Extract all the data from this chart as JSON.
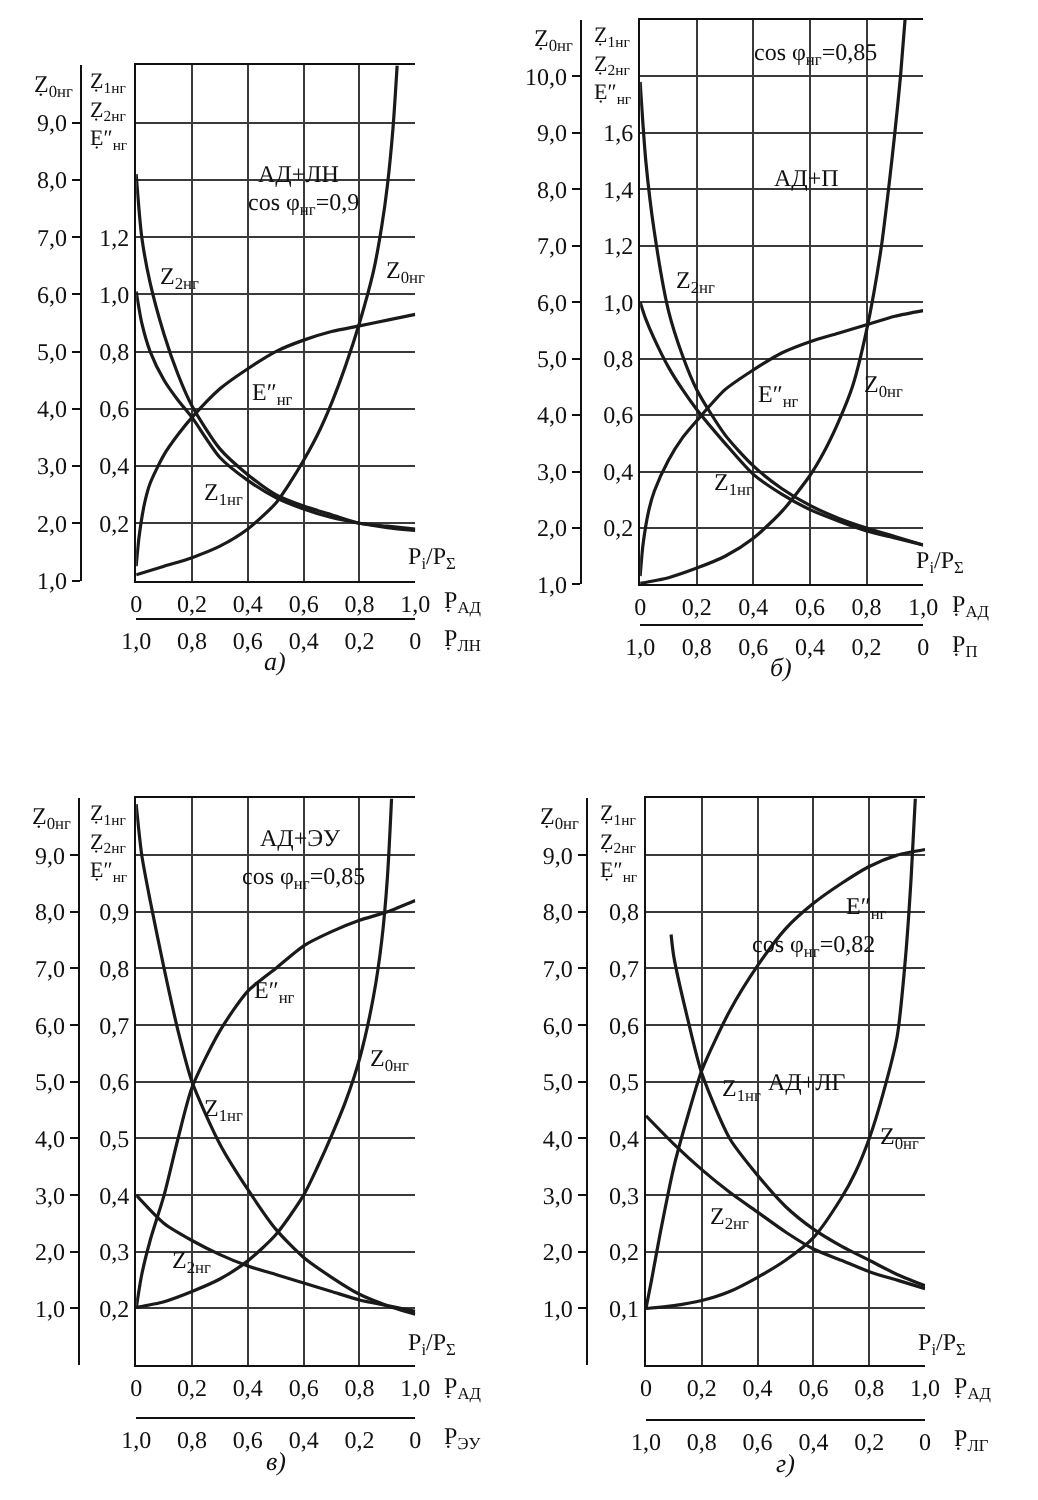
{
  "chart_data": [
    {
      "type": "line",
      "title": "а)",
      "xlabel": "P̣$_{АД}$",
      "x2label": "P̣$_{ЛН}$",
      "ylabel": "Ẓ$_{0нг}$",
      "y2label": "Ẓ$_{1нг}$\nẒ$_{2нг}$\nẸ″$_{нг}$",
      "annotations": [
        "АД+ЛН",
        "cos φ$_{нг}$=0,9",
        "P$_{i}$/P$_{Σ}$"
      ],
      "xlim": [
        0,
        1
      ],
      "xticks": [
        0,
        {
          "value": 0.2,
          "label": "0,2"
        },
        {
          "value": 0.4,
          "label": "0,4"
        },
        {
          "value": 0.6,
          "label": "0,6"
        },
        {
          "value": 0.8,
          "label": "0,8"
        },
        {
          "value": 1,
          "label": "1,0"
        }
      ],
      "x2lim": [
        1,
        0
      ],
      "x2ticks": [
        {
          "value": 1,
          "label": "1,0"
        },
        {
          "value": 0.8,
          "label": "0,8"
        },
        {
          "value": 0.6,
          "label": "0,6"
        },
        {
          "value": 0.4,
          "label": "0,4"
        },
        {
          "value": 0.2,
          "label": "0,2"
        },
        0
      ],
      "ylim": [
        1,
        10
      ],
      "yticks": [
        {
          "value": 1,
          "label": "1,0"
        },
        {
          "value": 2,
          "label": "2,0"
        },
        {
          "value": 3,
          "label": "3,0"
        },
        {
          "value": 4,
          "label": "4,0"
        },
        {
          "value": 5,
          "label": "5,0"
        },
        {
          "value": 6,
          "label": "6,0"
        },
        {
          "value": 7,
          "label": "7,0"
        },
        {
          "value": 8,
          "label": "8,0"
        },
        {
          "value": 9,
          "label": "9,0"
        }
      ],
      "y2lim": [
        0,
        1.8
      ],
      "y2ticks": [
        {
          "value": 0.2,
          "label": "0,2"
        },
        {
          "value": 0.4,
          "label": "0,4"
        },
        {
          "value": 0.6,
          "label": "0,6"
        },
        {
          "value": 0.8,
          "label": "0,8"
        },
        {
          "value": 1,
          "label": "1,0"
        },
        {
          "value": 1.2,
          "label": "1,2"
        }
      ],
      "grid": true,
      "legend": false,
      "marker": "none",
      "line_style": "solid",
      "series": [
        {
          "name": "Z$_{0нг}$",
          "color": "#1a1a1a",
          "axis": "y",
          "x": [
            0,
            0.1,
            0.2,
            0.3,
            0.4,
            0.5,
            0.55,
            0.6,
            0.65,
            0.7,
            0.75,
            0.8,
            0.85,
            0.88,
            0.9,
            0.92,
            0.935
          ],
          "values": [
            1.1,
            1.25,
            1.4,
            1.6,
            1.9,
            2.35,
            2.7,
            3.1,
            3.55,
            4.1,
            4.75,
            5.5,
            6.4,
            7.2,
            7.9,
            8.9,
            10
          ]
        },
        {
          "name": "Z$_{1нг}$",
          "color": "#1a1a1a",
          "axis": "y2",
          "x": [
            0,
            0.02,
            0.05,
            0.1,
            0.15,
            0.2,
            0.3,
            0.4,
            0.5,
            0.6,
            0.7,
            0.8,
            0.9,
            1
          ],
          "values": [
            1.01,
            0.9,
            0.8,
            0.7,
            0.63,
            0.57,
            0.43,
            0.35,
            0.29,
            0.25,
            0.22,
            0.2,
            0.185,
            0.175
          ]
        },
        {
          "name": "Z$_{2нг}$",
          "color": "#1a1a1a",
          "axis": "y2",
          "x": [
            0,
            0.02,
            0.05,
            0.1,
            0.15,
            0.2,
            0.3,
            0.4,
            0.5,
            0.6,
            0.7,
            0.8,
            0.9,
            1
          ],
          "values": [
            1.42,
            1.2,
            1.04,
            0.86,
            0.72,
            0.61,
            0.46,
            0.37,
            0.3,
            0.26,
            0.23,
            0.2,
            0.19,
            0.18
          ]
        },
        {
          "name": "E″$_{нг}$",
          "color": "#1a1a1a",
          "axis": "y2",
          "x": [
            0,
            0.01,
            0.03,
            0.05,
            0.1,
            0.15,
            0.2,
            0.3,
            0.4,
            0.5,
            0.6,
            0.7,
            0.8,
            0.9,
            1
          ],
          "values": [
            0.05,
            0.15,
            0.27,
            0.34,
            0.44,
            0.51,
            0.57,
            0.67,
            0.74,
            0.8,
            0.84,
            0.87,
            0.89,
            0.91,
            0.93
          ]
        }
      ]
    },
    {
      "type": "line",
      "title": "б)",
      "xlabel": "P̣$_{АД}$",
      "x2label": "P̣$_{П}$",
      "ylabel": "Ẓ$_{0нг}$",
      "y2label": "Ẓ$_{1нг}$\nẒ$_{2нг}$\nẸ″$_{нг}$",
      "annotations": [
        "cos φ$_{нг}$=0,85",
        "АД+П",
        "P$_{i}$/P$_{Σ}$"
      ],
      "xlim": [
        0,
        1
      ],
      "xticks": [
        0,
        {
          "value": 0.2,
          "label": "0,2"
        },
        {
          "value": 0.4,
          "label": "0,4"
        },
        {
          "value": 0.6,
          "label": "0,6"
        },
        {
          "value": 0.8,
          "label": "0,8"
        },
        {
          "value": 1,
          "label": "1,0"
        }
      ],
      "x2lim": [
        1,
        0
      ],
      "x2ticks": [
        {
          "value": 1,
          "label": "1,0"
        },
        {
          "value": 0.8,
          "label": "0,8"
        },
        {
          "value": 0.6,
          "label": "0,6"
        },
        {
          "value": 0.4,
          "label": "0,4"
        },
        {
          "value": 0.2,
          "label": "0,2"
        },
        0
      ],
      "ylim": [
        1,
        11
      ],
      "yticks": [
        {
          "value": 1,
          "label": "1,0"
        },
        {
          "value": 2,
          "label": "2,0"
        },
        {
          "value": 3,
          "label": "3,0"
        },
        {
          "value": 4,
          "label": "4,0"
        },
        {
          "value": 5,
          "label": "5,0"
        },
        {
          "value": 6,
          "label": "6,0"
        },
        {
          "value": 7,
          "label": "7,0"
        },
        {
          "value": 8,
          "label": "8,0"
        },
        {
          "value": 9,
          "label": "9,0"
        },
        {
          "value": 10,
          "label": "10,0"
        }
      ],
      "y2lim": [
        0,
        2
      ],
      "y2ticks": [
        {
          "value": 0.2,
          "label": "0,2"
        },
        {
          "value": 0.4,
          "label": "0,4"
        },
        {
          "value": 0.6,
          "label": "0,6"
        },
        {
          "value": 0.8,
          "label": "0,8"
        },
        {
          "value": 1,
          "label": "1,0"
        },
        {
          "value": 1.2,
          "label": "1,2"
        },
        {
          "value": 1.4,
          "label": "1,4"
        },
        {
          "value": 1.6,
          "label": "1,6"
        }
      ],
      "grid": true,
      "legend": false,
      "marker": "none",
      "line_style": "solid",
      "series": [
        {
          "name": "Z$_{0нг}$",
          "color": "#1a1a1a",
          "axis": "y",
          "x": [
            0,
            0.1,
            0.2,
            0.3,
            0.4,
            0.5,
            0.6,
            0.65,
            0.7,
            0.75,
            0.8,
            0.85,
            0.88,
            0.9,
            0.92,
            0.936
          ],
          "values": [
            1.02,
            1.12,
            1.29,
            1.5,
            1.82,
            2.29,
            2.93,
            3.35,
            3.87,
            4.5,
            5.5,
            6.9,
            8.1,
            9,
            10,
            11
          ]
        },
        {
          "name": "Z$_{1нг}$",
          "color": "#1a1a1a",
          "axis": "y2",
          "x": [
            0,
            0.02,
            0.05,
            0.1,
            0.15,
            0.2,
            0.3,
            0.4,
            0.5,
            0.6,
            0.7,
            0.8,
            0.9,
            1
          ],
          "values": [
            1,
            0.94,
            0.87,
            0.77,
            0.69,
            0.62,
            0.5,
            0.39,
            0.32,
            0.265,
            0.225,
            0.19,
            0.165,
            0.14
          ]
        },
        {
          "name": "Z$_{2нг}$",
          "color": "#1a1a1a",
          "axis": "y2",
          "x": [
            0,
            0.02,
            0.05,
            0.1,
            0.15,
            0.2,
            0.3,
            0.4,
            0.5,
            0.6,
            0.7,
            0.8,
            0.9,
            1
          ],
          "values": [
            1.78,
            1.5,
            1.25,
            0.97,
            0.81,
            0.69,
            0.53,
            0.42,
            0.34,
            0.28,
            0.235,
            0.2,
            0.17,
            0.14
          ]
        },
        {
          "name": "E″$_{нг}$",
          "color": "#1a1a1a",
          "axis": "y2",
          "x": [
            0,
            0.01,
            0.03,
            0.05,
            0.1,
            0.15,
            0.2,
            0.3,
            0.4,
            0.5,
            0.6,
            0.7,
            0.8,
            0.9,
            1
          ],
          "values": [
            0.03,
            0.14,
            0.26,
            0.33,
            0.44,
            0.52,
            0.58,
            0.69,
            0.76,
            0.82,
            0.86,
            0.89,
            0.92,
            0.95,
            0.97
          ]
        }
      ]
    },
    {
      "type": "line",
      "title": "в)",
      "xlabel": "P̣$_{АД}$",
      "x2label": "P̣$_{ЭУ}$",
      "ylabel": "Ẓ$_{0нг}$",
      "y2label": "Ẓ$_{1нг}$\nẒ$_{2нг}$\nẸ″$_{нг}$",
      "annotations": [
        "АД+ЭУ",
        "cos φ$_{нг}$=0,85",
        "P$_{i}$/P$_{Σ}$"
      ],
      "xlim": [
        0,
        1
      ],
      "xticks": [
        0,
        {
          "value": 0.2,
          "label": "0,2"
        },
        {
          "value": 0.4,
          "label": "0,4"
        },
        {
          "value": 0.6,
          "label": "0,6"
        },
        {
          "value": 0.8,
          "label": "0,8"
        },
        {
          "value": 1,
          "label": "1,0"
        }
      ],
      "x2lim": [
        1,
        0
      ],
      "x2ticks": [
        {
          "value": 1,
          "label": "1,0"
        },
        {
          "value": 0.8,
          "label": "0,8"
        },
        {
          "value": 0.6,
          "label": "0,6"
        },
        {
          "value": 0.4,
          "label": "0,4"
        },
        {
          "value": 0.2,
          "label": "0,2"
        },
        0
      ],
      "ylim": [
        0,
        10
      ],
      "yticks": [
        {
          "value": 1,
          "label": "1,0"
        },
        {
          "value": 2,
          "label": "2,0"
        },
        {
          "value": 3,
          "label": "3,0"
        },
        {
          "value": 4,
          "label": "4,0"
        },
        {
          "value": 5,
          "label": "5,0"
        },
        {
          "value": 6,
          "label": "6,0"
        },
        {
          "value": 7,
          "label": "7,0"
        },
        {
          "value": 8,
          "label": "8,0"
        },
        {
          "value": 9,
          "label": "9,0"
        }
      ],
      "y2lim": [
        0.1,
        1.1
      ],
      "y2ticks": [
        {
          "value": 0.2,
          "label": "0,2"
        },
        {
          "value": 0.3,
          "label": "0,3"
        },
        {
          "value": 0.4,
          "label": "0,4"
        },
        {
          "value": 0.5,
          "label": "0,5"
        },
        {
          "value": 0.6,
          "label": "0,6"
        },
        {
          "value": 0.7,
          "label": "0,7"
        },
        {
          "value": 0.8,
          "label": "0,8"
        },
        {
          "value": 0.9,
          "label": "0,9"
        }
      ],
      "grid": true,
      "legend": false,
      "marker": "none",
      "line_style": "solid",
      "series": [
        {
          "name": "Z$_{0нг}$",
          "color": "#1a1a1a",
          "axis": "y",
          "x": [
            0,
            0.1,
            0.2,
            0.3,
            0.4,
            0.5,
            0.6,
            0.65,
            0.7,
            0.75,
            0.8,
            0.85,
            0.88,
            0.9,
            0.915
          ],
          "values": [
            1.02,
            1.12,
            1.3,
            1.52,
            1.84,
            2.3,
            3,
            3.5,
            4.05,
            4.65,
            5.4,
            6.5,
            7.5,
            8.6,
            10
          ]
        },
        {
          "name": "Z$_{1нг}$",
          "color": "#1a1a1a",
          "axis": "y2",
          "x": [
            0,
            0.02,
            0.05,
            0.1,
            0.15,
            0.2,
            0.3,
            0.4,
            0.5,
            0.6,
            0.7,
            0.8,
            0.9,
            1
          ],
          "values": [
            1.09,
            1,
            0.92,
            0.8,
            0.69,
            0.6,
            0.49,
            0.41,
            0.34,
            0.29,
            0.255,
            0.225,
            0.205,
            0.19
          ]
        },
        {
          "name": "Z$_{2нг}$",
          "color": "#1a1a1a",
          "axis": "y2",
          "x": [
            0,
            0.1,
            0.2,
            0.3,
            0.4,
            0.5,
            0.6,
            0.7,
            0.8,
            0.9,
            1
          ],
          "values": [
            0.4,
            0.35,
            0.32,
            0.295,
            0.275,
            0.26,
            0.245,
            0.23,
            0.215,
            0.205,
            0.195
          ]
        },
        {
          "name": "E″$_{нг}$",
          "color": "#1a1a1a",
          "axis": "y2",
          "x": [
            0,
            0.02,
            0.05,
            0.1,
            0.15,
            0.2,
            0.3,
            0.4,
            0.5,
            0.6,
            0.7,
            0.8,
            0.9,
            1
          ],
          "values": [
            0.2,
            0.26,
            0.32,
            0.4,
            0.5,
            0.59,
            0.69,
            0.76,
            0.8,
            0.84,
            0.865,
            0.885,
            0.9,
            0.92
          ]
        }
      ]
    },
    {
      "type": "line",
      "title": "г)",
      "xlabel": "P̣$_{АД}$",
      "x2label": "P̣$_{ЛГ}$",
      "ylabel": "Ẓ$_{0нг}$",
      "y2label": "Ẓ$_{1нг}$\nẒ$_{2нг}$\nẸ″$_{нг}$",
      "annotations": [
        "cos φ$_{нг}$=0,82",
        "АД+ЛГ",
        "P$_{i}$/P$_{Σ}$"
      ],
      "xlim": [
        0,
        1
      ],
      "xticks": [
        0,
        {
          "value": 0.2,
          "label": "0,2"
        },
        {
          "value": 0.4,
          "label": "0,4"
        },
        {
          "value": 0.6,
          "label": "0,6"
        },
        {
          "value": 0.8,
          "label": "0,8"
        },
        {
          "value": 1,
          "label": "1,0"
        }
      ],
      "x2lim": [
        1,
        0
      ],
      "x2ticks": [
        {
          "value": 1,
          "label": "1,0"
        },
        {
          "value": 0.8,
          "label": "0,8"
        },
        {
          "value": 0.6,
          "label": "0,6"
        },
        {
          "value": 0.4,
          "label": "0,4"
        },
        {
          "value": 0.2,
          "label": "0,2"
        },
        0
      ],
      "ylim": [
        0,
        10
      ],
      "yticks": [
        {
          "value": 1,
          "label": "1,0"
        },
        {
          "value": 2,
          "label": "2,0"
        },
        {
          "value": 3,
          "label": "3,0"
        },
        {
          "value": 4,
          "label": "4,0"
        },
        {
          "value": 5,
          "label": "5,0"
        },
        {
          "value": 6,
          "label": "6,0"
        },
        {
          "value": 7,
          "label": "7,0"
        },
        {
          "value": 8,
          "label": "8,0"
        },
        {
          "value": 9,
          "label": "9,0"
        }
      ],
      "y2lim": [
        0,
        1
      ],
      "y2ticks": [
        {
          "value": 0.1,
          "label": "0,1"
        },
        {
          "value": 0.2,
          "label": "0,2"
        },
        {
          "value": 0.3,
          "label": "0,3"
        },
        {
          "value": 0.4,
          "label": "0,4"
        },
        {
          "value": 0.5,
          "label": "0,5"
        },
        {
          "value": 0.6,
          "label": "0,6"
        },
        {
          "value": 0.7,
          "label": "0,7"
        },
        {
          "value": 0.8,
          "label": "0,8"
        }
      ],
      "grid": true,
      "legend": false,
      "marker": "none",
      "line_style": "solid",
      "series": [
        {
          "name": "Z$_{0нг}$",
          "color": "#1a1a1a",
          "axis": "y",
          "x": [
            0,
            0.1,
            0.2,
            0.3,
            0.4,
            0.5,
            0.6,
            0.7,
            0.75,
            0.8,
            0.85,
            0.9,
            0.93,
            0.95,
            0.965
          ],
          "values": [
            1,
            1.05,
            1.14,
            1.3,
            1.55,
            1.85,
            2.25,
            2.95,
            3.4,
            4,
            4.8,
            5.8,
            7.2,
            8.6,
            10
          ]
        },
        {
          "name": "Z$_{1нг}$",
          "color": "#1a1a1a",
          "axis": "y2",
          "x": [
            0.09,
            0.1,
            0.15,
            0.2,
            0.3,
            0.4,
            0.5,
            0.6,
            0.7,
            0.8,
            0.9,
            1
          ],
          "values": [
            0.76,
            0.72,
            0.61,
            0.515,
            0.4,
            0.335,
            0.28,
            0.24,
            0.21,
            0.185,
            0.16,
            0.14
          ]
        },
        {
          "name": "Z$_{2нг}$",
          "color": "#1a1a1a",
          "axis": "y2",
          "x": [
            0,
            0.1,
            0.2,
            0.3,
            0.4,
            0.5,
            0.6,
            0.7,
            0.8,
            0.9,
            1
          ],
          "values": [
            0.44,
            0.39,
            0.345,
            0.305,
            0.27,
            0.235,
            0.205,
            0.185,
            0.165,
            0.15,
            0.135
          ]
        },
        {
          "name": "E″$_{нг}$",
          "color": "#1a1a1a",
          "axis": "y2",
          "x": [
            0,
            0.02,
            0.05,
            0.1,
            0.15,
            0.2,
            0.3,
            0.4,
            0.5,
            0.6,
            0.7,
            0.8,
            0.9,
            1
          ],
          "values": [
            0.1,
            0.15,
            0.23,
            0.35,
            0.44,
            0.52,
            0.625,
            0.705,
            0.77,
            0.815,
            0.85,
            0.88,
            0.9,
            0.91
          ]
        }
      ]
    }
  ]
}
